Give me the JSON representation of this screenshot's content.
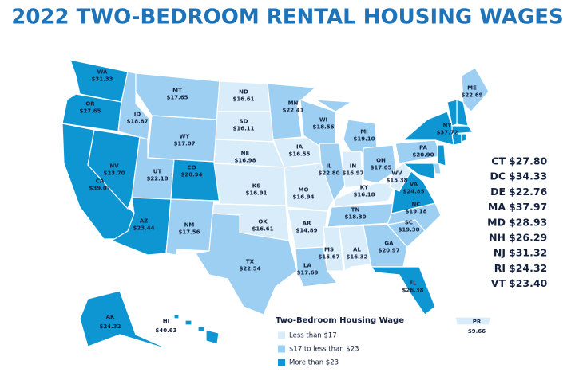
{
  "title": "2022 TWO-BEDROOM RENTAL HOUSING WAGES",
  "states": [
    {
      "abbr": "WA",
      "value": 31.33,
      "label": "$31.33",
      "color": "#0e96d3"
    },
    {
      "abbr": "OR",
      "value": 27.65,
      "label": "$27.65",
      "color": "#0e96d3"
    },
    {
      "abbr": "CA",
      "value": 39.01,
      "label": "$39.01",
      "color": "#0e96d3"
    },
    {
      "abbr": "NV",
      "value": 23.7,
      "label": "$23.70",
      "color": "#0e96d3"
    },
    {
      "abbr": "ID",
      "value": 18.87,
      "label": "$18.87",
      "color": "#9ccff1"
    },
    {
      "abbr": "MT",
      "value": 17.65,
      "label": "$17.65",
      "color": "#9ccff1"
    },
    {
      "abbr": "WY",
      "value": 17.07,
      "label": "$17.07",
      "color": "#9ccff1"
    },
    {
      "abbr": "UT",
      "value": 22.18,
      "label": "$22.18",
      "color": "#9ccff1"
    },
    {
      "abbr": "CO",
      "value": 28.94,
      "label": "$28.94",
      "color": "#0e96d3"
    },
    {
      "abbr": "AZ",
      "value": 23.44,
      "label": "$23.44",
      "color": "#0e96d3"
    },
    {
      "abbr": "NM",
      "value": 17.56,
      "label": "$17.56",
      "color": "#9ccff1"
    },
    {
      "abbr": "ND",
      "value": 16.61,
      "label": "$16.61",
      "color": "#d8ecf9"
    },
    {
      "abbr": "SD",
      "value": 16.11,
      "label": "$16.11",
      "color": "#d8ecf9"
    },
    {
      "abbr": "NE",
      "value": 16.98,
      "label": "$16.98",
      "color": "#d8ecf9"
    },
    {
      "abbr": "KS",
      "value": 16.91,
      "label": "$16.91",
      "color": "#d8ecf9"
    },
    {
      "abbr": "OK",
      "value": 16.61,
      "label": "$16.61",
      "color": "#d8ecf9"
    },
    {
      "abbr": "TX",
      "value": 22.54,
      "label": "$22.54",
      "color": "#9ccff1"
    },
    {
      "abbr": "MN",
      "value": 22.41,
      "label": "$22.41",
      "color": "#9ccff1"
    },
    {
      "abbr": "IA",
      "value": 16.55,
      "label": "$16.55",
      "color": "#d8ecf9"
    },
    {
      "abbr": "MO",
      "value": 16.94,
      "label": "$16.94",
      "color": "#d8ecf9"
    },
    {
      "abbr": "AR",
      "value": 14.89,
      "label": "$14.89",
      "color": "#d8ecf9"
    },
    {
      "abbr": "LA",
      "value": 17.69,
      "label": "$17.69",
      "color": "#9ccff1"
    },
    {
      "abbr": "WI",
      "value": 18.56,
      "label": "$18.56",
      "color": "#9ccff1"
    },
    {
      "abbr": "IL",
      "value": 22.8,
      "label": "$22.80",
      "color": "#9ccff1"
    },
    {
      "abbr": "MS",
      "value": 15.67,
      "label": "$15.67",
      "color": "#d8ecf9"
    },
    {
      "abbr": "MI",
      "value": 19.1,
      "label": "$19.10",
      "color": "#9ccff1"
    },
    {
      "abbr": "IN",
      "value": 16.97,
      "label": "$16.97",
      "color": "#d8ecf9"
    },
    {
      "abbr": "KY",
      "value": 16.18,
      "label": "$16.18",
      "color": "#d8ecf9"
    },
    {
      "abbr": "TN",
      "value": 18.3,
      "label": "$18.30",
      "color": "#9ccff1"
    },
    {
      "abbr": "AL",
      "value": 16.32,
      "label": "$16.32",
      "color": "#d8ecf9"
    },
    {
      "abbr": "OH",
      "value": 17.05,
      "label": "$17.05",
      "color": "#9ccff1"
    },
    {
      "abbr": "GA",
      "value": 20.97,
      "label": "$20.97",
      "color": "#9ccff1"
    },
    {
      "abbr": "FL",
      "value": 26.38,
      "label": "$26.38",
      "color": "#0e96d3"
    },
    {
      "abbr": "SC",
      "value": 19.3,
      "label": "$19.30",
      "color": "#9ccff1"
    },
    {
      "abbr": "NC",
      "value": 19.18,
      "label": "$19.18",
      "color": "#9ccff1"
    },
    {
      "abbr": "VA",
      "value": 24.85,
      "label": "$24.85",
      "color": "#0e96d3"
    },
    {
      "abbr": "WV",
      "value": 15.38,
      "label": "$15.38",
      "color": "#d8ecf9"
    },
    {
      "abbr": "PA",
      "value": 20.9,
      "label": "$20.90",
      "color": "#9ccff1"
    },
    {
      "abbr": "NY",
      "value": 37.72,
      "label": "$37.72",
      "color": "#0e96d3"
    },
    {
      "abbr": "ME",
      "value": 22.69,
      "label": "$22.69",
      "color": "#9ccff1"
    },
    {
      "abbr": "AK",
      "value": 24.32,
      "label": "$24.32",
      "color": "#0e96d3"
    },
    {
      "abbr": "HI",
      "value": 40.63,
      "label": "$40.63",
      "color": "#0e96d3"
    },
    {
      "abbr": "PR",
      "value": 9.66,
      "label": "$9.66",
      "color": "#d8ecf9"
    }
  ],
  "small_states": [
    {
      "abbr": "CT",
      "value": 27.8,
      "label": "$27.80",
      "color": "#0e96d3"
    },
    {
      "abbr": "DC",
      "value": 34.33,
      "label": "$34.33",
      "color": "#0e96d3"
    },
    {
      "abbr": "DE",
      "value": 22.76,
      "label": "$22.76",
      "color": "#9ccff1"
    },
    {
      "abbr": "MA",
      "value": 37.97,
      "label": "$37.97",
      "color": "#0e96d3"
    },
    {
      "abbr": "MD",
      "value": 28.93,
      "label": "$28.93",
      "color": "#0e96d3"
    },
    {
      "abbr": "NH",
      "value": 26.29,
      "label": "$26.29",
      "color": "#0e96d3"
    },
    {
      "abbr": "NJ",
      "value": 31.32,
      "label": "$31.32",
      "color": "#0e96d3"
    },
    {
      "abbr": "RI",
      "value": 24.32,
      "label": "$24.32",
      "color": "#0e96d3"
    },
    {
      "abbr": "VT",
      "value": 23.4,
      "label": "$23.40",
      "color": "#0e96d3"
    }
  ],
  "legend": {
    "title": "Two-Bedroom Housing Wage",
    "items": [
      {
        "label": "Less than $17",
        "color": "#d8ecf9"
      },
      {
        "label": "$17 to less than $23",
        "color": "#9ccff1"
      },
      {
        "label": "More than $23",
        "color": "#0e96d3"
      }
    ]
  }
}
